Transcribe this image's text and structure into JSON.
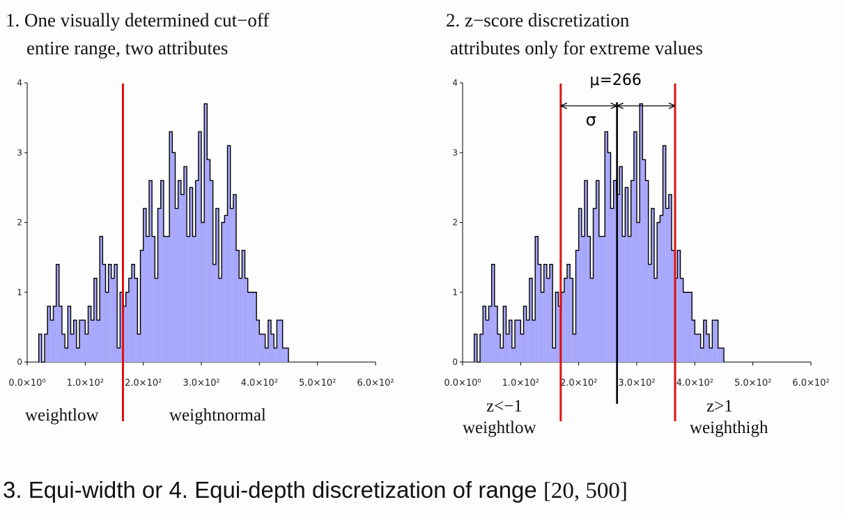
{
  "panels": [
    {
      "title_line1": "1. One visually determined cut−off",
      "title_line2": "entire range, two attributes"
    },
    {
      "title_line1": "2. z−score discretization",
      "title_line2": "attributes only for extreme values"
    }
  ],
  "labels": {
    "p1_left": "weightlow",
    "p1_right": "weightnormal",
    "p2_left_top": "z<−1",
    "p2_left_bottom": "weightlow",
    "p2_right_top": "z>1",
    "p2_right_bottom": "weighthigh",
    "mu": "μ=266",
    "sigma": "σ"
  },
  "footer": {
    "text": "3. Equi-width or 4. Equi-depth discretization of range ",
    "range": "[20, 500]"
  },
  "colors": {
    "fill": "#a7a7fb",
    "cut": "#e01010",
    "mean": "#000000"
  },
  "chart_data": {
    "type": "histogram",
    "x_tick_labels": [
      "0.0×10⁰",
      "1.0×10²",
      "2.0×10²",
      "3.0×10²",
      "4.0×10²",
      "5.0×10²",
      "6.0×10²"
    ],
    "x_ticks": [
      0,
      100,
      200,
      300,
      400,
      500,
      600
    ],
    "y_ticks": [
      0,
      1,
      2,
      3,
      4
    ],
    "xlim": [
      0,
      600
    ],
    "ylim": [
      0,
      4
    ],
    "bin_start": 20,
    "bin_width": 5,
    "counts": [
      0.4,
      0,
      0.4,
      0.8,
      0.6,
      0.8,
      1.4,
      0.8,
      0.4,
      0.2,
      0.8,
      0.4,
      0.6,
      0.2,
      0.6,
      0.6,
      0.4,
      0.8,
      0.6,
      1.2,
      0.6,
      1.8,
      1.4,
      1.0,
      1.4,
      1.2,
      1.4,
      0.2,
      1.0,
      0.8,
      1.0,
      1.2,
      1.4,
      1.2,
      0.4,
      1.6,
      2.2,
      1.8,
      2.6,
      1.8,
      1.2,
      2.2,
      2.6,
      1.8,
      1.8,
      3.3,
      3.0,
      2.2,
      2.6,
      2.4,
      2.8,
      1.8,
      2.5,
      1.8,
      2.6,
      3.3,
      2.0,
      3.7,
      2.9,
      2.6,
      1.4,
      2.2,
      1.2,
      2.0,
      2.1,
      3.1,
      2.2,
      2.4,
      1.6,
      1.2,
      1.6,
      1.2,
      1.0,
      1.0,
      1.0,
      0.6,
      0.4,
      0.4,
      0.2,
      0.6,
      0.4,
      0.2,
      0.6,
      0.6,
      0.2,
      0.2
    ],
    "panels": [
      {
        "title": "1. One visually determined cut−off",
        "cuts": [
          165
        ]
      },
      {
        "title": "2. z−score discretization",
        "cuts": [
          169,
          366
        ],
        "mean": 266
      }
    ]
  }
}
